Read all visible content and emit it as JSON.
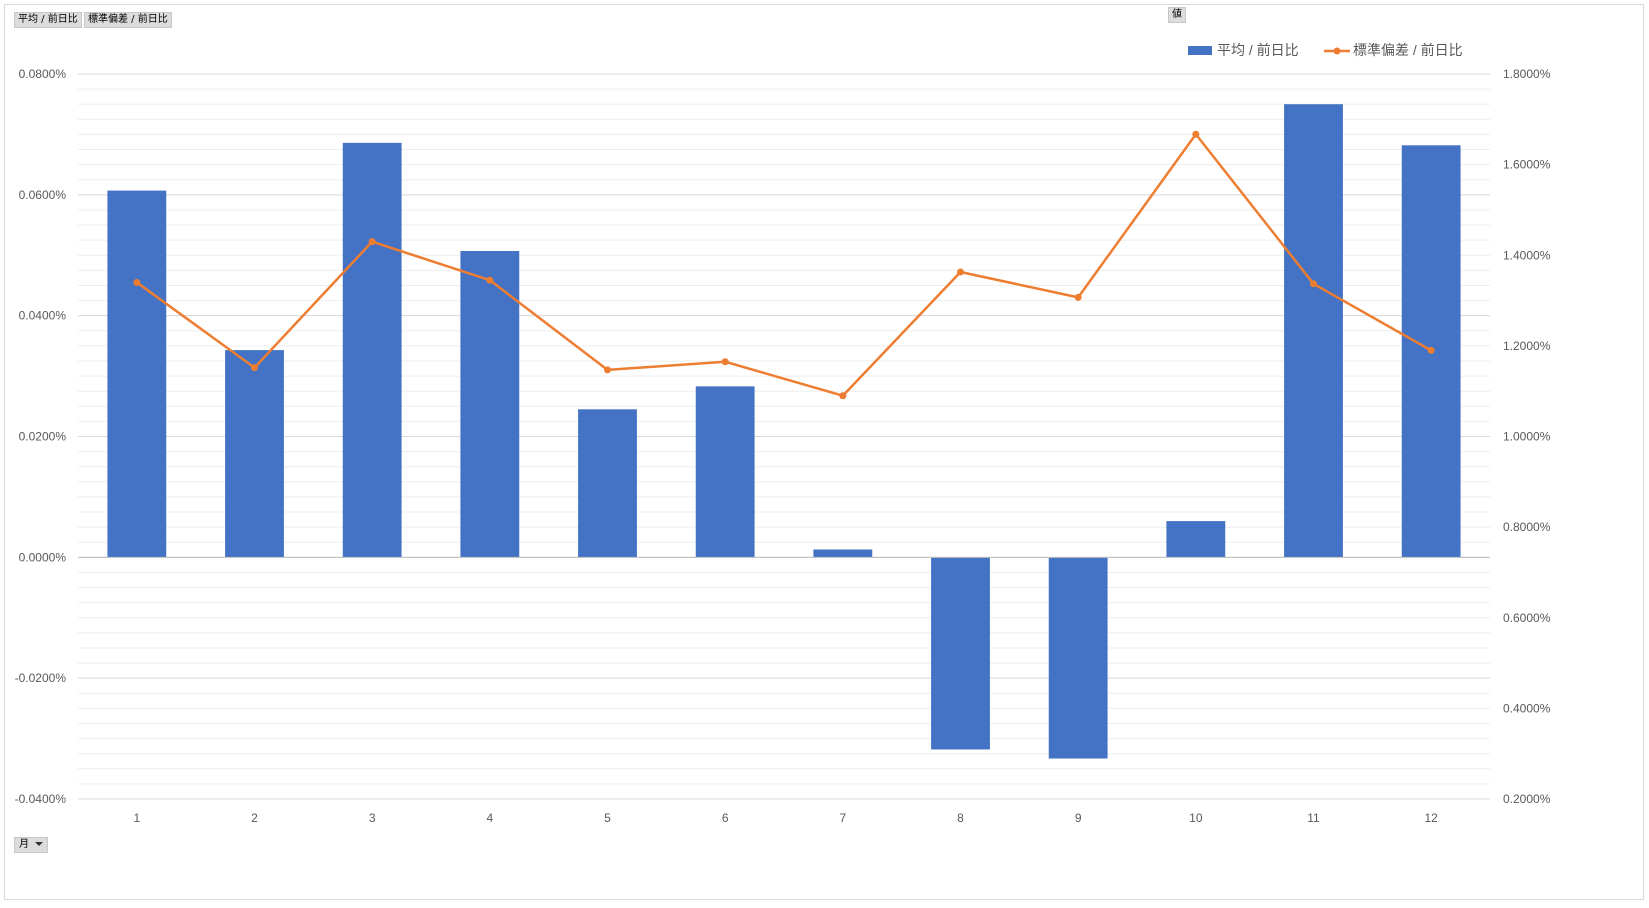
{
  "field_buttons": {
    "values_left_1": "平均 / 前日比",
    "values_left_2": "標準偏差 / 前日比",
    "values_top": "値",
    "month_label": "月"
  },
  "colors": {
    "bar": "#4472C4",
    "line": "#ED7D31",
    "grid": "#d9d9d9",
    "minor_grid": "#eeeeee",
    "axis_text": "#595959"
  },
  "chart_data": {
    "type": "bar",
    "categories": [
      "1",
      "2",
      "3",
      "4",
      "5",
      "6",
      "7",
      "8",
      "9",
      "10",
      "11",
      "12"
    ],
    "series": [
      {
        "name": "平均 / 前日比",
        "type": "bar",
        "axis": "left",
        "values": [
          0.000607,
          0.000343,
          0.000686,
          0.000507,
          0.000245,
          0.000283,
          1.3e-05,
          -0.000318,
          -0.000333,
          6e-05,
          0.00075,
          0.000682
        ]
      },
      {
        "name": "標準偏差 / 前日比",
        "type": "line",
        "axis": "right",
        "values": [
          0.0134,
          0.01152,
          0.0143,
          0.01345,
          0.01147,
          0.01165,
          0.0109,
          0.01363,
          0.01307,
          0.01667,
          0.01337,
          0.0119
        ]
      }
    ],
    "y_left": {
      "min": -0.0004,
      "max": 0.0008,
      "ticks": [
        "-0.0400%",
        "-0.0200%",
        "0.0000%",
        "0.0200%",
        "0.0400%",
        "0.0600%",
        "0.0800%"
      ]
    },
    "y_right": {
      "min": 0.002,
      "max": 0.018,
      "ticks": [
        "0.2000%",
        "0.4000%",
        "0.6000%",
        "0.8000%",
        "1.0000%",
        "1.2000%",
        "1.4000%",
        "1.6000%",
        "1.8000%"
      ]
    },
    "legend_position": "top-right",
    "grid": true
  }
}
